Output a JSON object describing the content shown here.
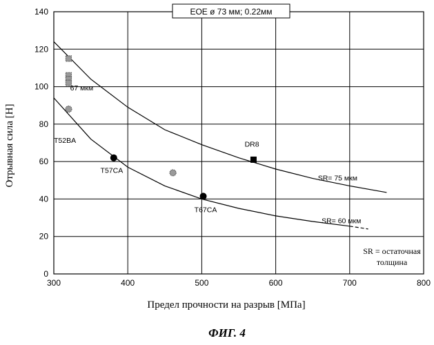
{
  "chart_data": {
    "type": "scatter",
    "title": "EOE ø 73 мм; 0.22мм",
    "xlabel": "Предел прочности на разрыв [МПа]",
    "ylabel": "Отрывная сила [Н]",
    "caption": "ФИГ. 4",
    "xlim": [
      300,
      800
    ],
    "ylim": [
      0,
      140
    ],
    "x_ticks": [
      300,
      400,
      500,
      600,
      700,
      800
    ],
    "y_ticks": [
      0,
      20,
      40,
      60,
      80,
      100,
      120,
      140
    ],
    "grid": true,
    "series": [
      {
        "marker": "circle",
        "color": "#000000",
        "points": [
          {
            "x": 381,
            "y": 62
          },
          {
            "x": 502,
            "y": 41.5
          }
        ]
      },
      {
        "marker": "square",
        "color": "#000000",
        "points": [
          {
            "x": 570,
            "y": 61
          }
        ]
      },
      {
        "marker": "speckled-circle",
        "color": "#555555",
        "points": [
          {
            "x": 320,
            "y": 88
          },
          {
            "x": 461,
            "y": 54
          }
        ]
      },
      {
        "marker": "speckled-square",
        "color": "#555555",
        "points": [
          {
            "x": 320,
            "y": 115
          },
          {
            "x": 320,
            "y": 106
          },
          {
            "x": 320,
            "y": 104
          },
          {
            "x": 320,
            "y": 102
          }
        ]
      }
    ],
    "curves": [
      {
        "label": "SR= 75 мкм",
        "style": "solid",
        "points": [
          {
            "x": 300,
            "y": 124
          },
          {
            "x": 350,
            "y": 104
          },
          {
            "x": 400,
            "y": 89
          },
          {
            "x": 450,
            "y": 77
          },
          {
            "x": 500,
            "y": 69
          },
          {
            "x": 550,
            "y": 62
          },
          {
            "x": 600,
            "y": 56
          },
          {
            "x": 650,
            "y": 51
          },
          {
            "x": 700,
            "y": 47
          },
          {
            "x": 750,
            "y": 43.5
          }
        ]
      },
      {
        "label": "SR= 60 мкм",
        "style": "solid-then-dashed",
        "points": [
          {
            "x": 300,
            "y": 94
          },
          {
            "x": 350,
            "y": 72
          },
          {
            "x": 400,
            "y": 57
          },
          {
            "x": 450,
            "y": 47
          },
          {
            "x": 500,
            "y": 40
          },
          {
            "x": 550,
            "y": 35
          },
          {
            "x": 600,
            "y": 31
          },
          {
            "x": 650,
            "y": 28
          },
          {
            "x": 700,
            "y": 25.5
          },
          {
            "x": 725,
            "y": 24
          }
        ]
      }
    ],
    "annotations": [
      {
        "text": "67 мкм",
        "x": 322,
        "y": 98
      },
      {
        "text": "T52BA",
        "x": 300,
        "y": 70
      },
      {
        "text": "T57CA",
        "x": 363,
        "y": 54
      },
      {
        "text": "T67CA",
        "x": 490,
        "y": 33
      },
      {
        "text": "DR8",
        "x": 558,
        "y": 68
      },
      {
        "text": "SR= 75 мкм",
        "x": 657,
        "y": 50
      },
      {
        "text": "SR= 60 мкм",
        "x": 662,
        "y": 27
      }
    ],
    "note_lines": [
      "SR = остаточная",
      "толщина"
    ]
  }
}
